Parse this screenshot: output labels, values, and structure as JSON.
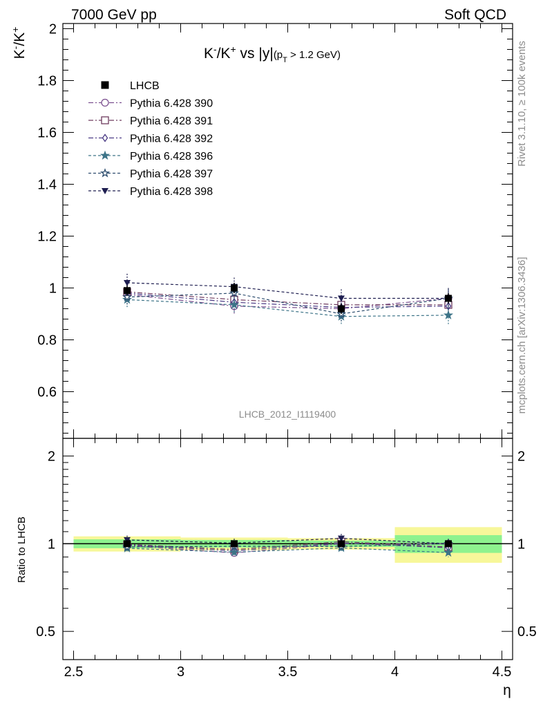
{
  "header": {
    "left": "7000 GeV pp",
    "right": "Soft QCD"
  },
  "side_labels": {
    "rivet": "Rivet 3.1.10, ≥ 100k events",
    "mcplots": "mcplots.cern.ch [arXiv:1306.3436]"
  },
  "chart_data": {
    "type": "scatter",
    "title_main": "K⁻/K⁺ vs |y|",
    "title_sub": "(p_T > 1.2 GeV)",
    "watermark": "LHCB_2012_I1119400",
    "xlabel": "η",
    "ylabel": "K⁻/K⁺",
    "ratio_ylabel": "Ratio to LHCB",
    "xlim": [
      2.45,
      4.55
    ],
    "ylim": [
      0.42,
      2.02
    ],
    "ratio_ylim": [
      0.4,
      2.3
    ],
    "ratio_log": true,
    "x_ticks": [
      "2.5",
      "3",
      "3.5",
      "4",
      "4.5"
    ],
    "x_tick_values": [
      2.5,
      3,
      3.5,
      4,
      4.5
    ],
    "y_ticks": [
      "0.6",
      "0.8",
      "1",
      "1.2",
      "1.4",
      "1.6",
      "1.8",
      "2"
    ],
    "y_tick_values": [
      0.6,
      0.8,
      1,
      1.2,
      1.4,
      1.6,
      1.8,
      2
    ],
    "ratio_ticks": [
      "0.5",
      "1",
      "2"
    ],
    "ratio_tick_values": [
      0.5,
      1,
      2
    ],
    "legend_position": "top-left",
    "data": {
      "name": "LHCB",
      "color": "#000000",
      "bins": [
        [
          2.5,
          3.0
        ],
        [
          3.0,
          3.5
        ],
        [
          3.5,
          4.0
        ],
        [
          4.0,
          4.5
        ]
      ],
      "x": [
        2.75,
        3.25,
        3.75,
        4.25
      ],
      "y": [
        0.99,
        1.0,
        0.92,
        0.96
      ],
      "ratio_band_inner": [
        0.035,
        0.03,
        0.025,
        0.07
      ],
      "ratio_band_outer": [
        0.06,
        0.05,
        0.045,
        0.14
      ]
    },
    "series": [
      {
        "name": "Pythia 6.428 390",
        "color": "#7b4f8f",
        "marker": "circle-open",
        "dash": "dashdot",
        "x": [
          2.75,
          3.25,
          3.75,
          4.25
        ],
        "y": [
          0.975,
          0.93,
          0.92,
          0.96
        ],
        "err": [
          0.03,
          0.03,
          0.03,
          0.035
        ]
      },
      {
        "name": "Pythia 6.428 391",
        "color": "#6e3a5e",
        "marker": "square-open",
        "dash": "dashdot",
        "x": [
          2.75,
          3.25,
          3.75,
          4.25
        ],
        "y": [
          0.985,
          0.955,
          0.935,
          0.935
        ],
        "err": [
          0.03,
          0.03,
          0.03,
          0.035
        ]
      },
      {
        "name": "Pythia 6.428 392",
        "color": "#4a3a85",
        "marker": "diamond-open",
        "dash": "dashdot",
        "x": [
          2.75,
          3.25,
          3.75,
          4.25
        ],
        "y": [
          0.98,
          0.945,
          0.925,
          0.93
        ],
        "err": [
          0.03,
          0.03,
          0.03,
          0.035
        ]
      },
      {
        "name": "Pythia 6.428 396",
        "color": "#3d7488",
        "marker": "star-filled",
        "dash": "dashed",
        "x": [
          2.75,
          3.25,
          3.75,
          4.25
        ],
        "y": [
          0.955,
          0.935,
          0.89,
          0.895
        ],
        "err": [
          0.03,
          0.03,
          0.03,
          0.035
        ]
      },
      {
        "name": "Pythia 6.428 397",
        "color": "#2d4d6e",
        "marker": "star-open",
        "dash": "dashed",
        "x": [
          2.75,
          3.25,
          3.75,
          4.25
        ],
        "y": [
          0.965,
          0.98,
          0.9,
          0.96
        ],
        "err": [
          0.03,
          0.03,
          0.03,
          0.035
        ]
      },
      {
        "name": "Pythia 6.428 398",
        "color": "#1e1e50",
        "marker": "triangle-down-filled",
        "dash": "dashed",
        "x": [
          2.75,
          3.25,
          3.75,
          4.25
        ],
        "y": [
          1.02,
          1.005,
          0.96,
          0.96
        ],
        "err": [
          0.035,
          0.035,
          0.035,
          0.04
        ]
      }
    ],
    "colors": {
      "band_inner": "#8ef28e",
      "band_outer": "#f7f79a"
    }
  }
}
